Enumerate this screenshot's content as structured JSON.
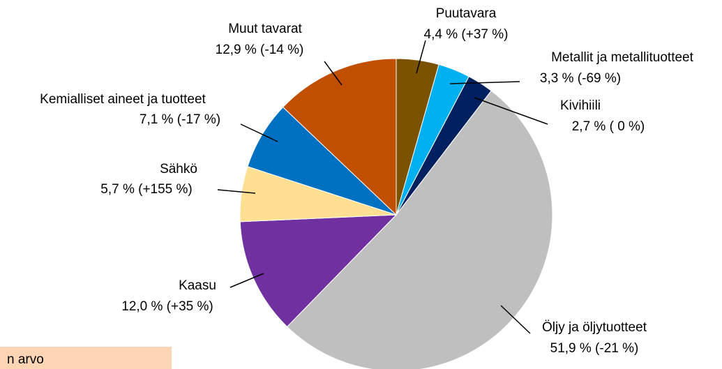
{
  "chart_data": {
    "type": "pie",
    "categories": [
      "Puutavara",
      "Metallit ja metallituotteet",
      "Kivihiili",
      "Öljy ja öljytuotteet",
      "Kaasu",
      "Sähkö",
      "Kemialliset aineet ja tuotteet",
      "Muut tavarat"
    ],
    "values": [
      4.4,
      3.3,
      2.7,
      51.9,
      12.0,
      5.7,
      7.1,
      12.9
    ],
    "value_labels": [
      "4,4 % (+37 %)",
      "3,3 % (-69 %)",
      "2,7 % ( 0 %)",
      "51,9 % (-21 %)",
      "12,0 % (+35 %)",
      "5,7 % (+155 %)",
      "7,1 % (-17 %)",
      "12,9 % (-14 %)"
    ],
    "colors": [
      "#7b5200",
      "#00b0f0",
      "#002060",
      "#bfbfbf",
      "#7030a0",
      "#ffdf91",
      "#0070c0",
      "#c05000"
    ],
    "annotation": "n arvo"
  }
}
